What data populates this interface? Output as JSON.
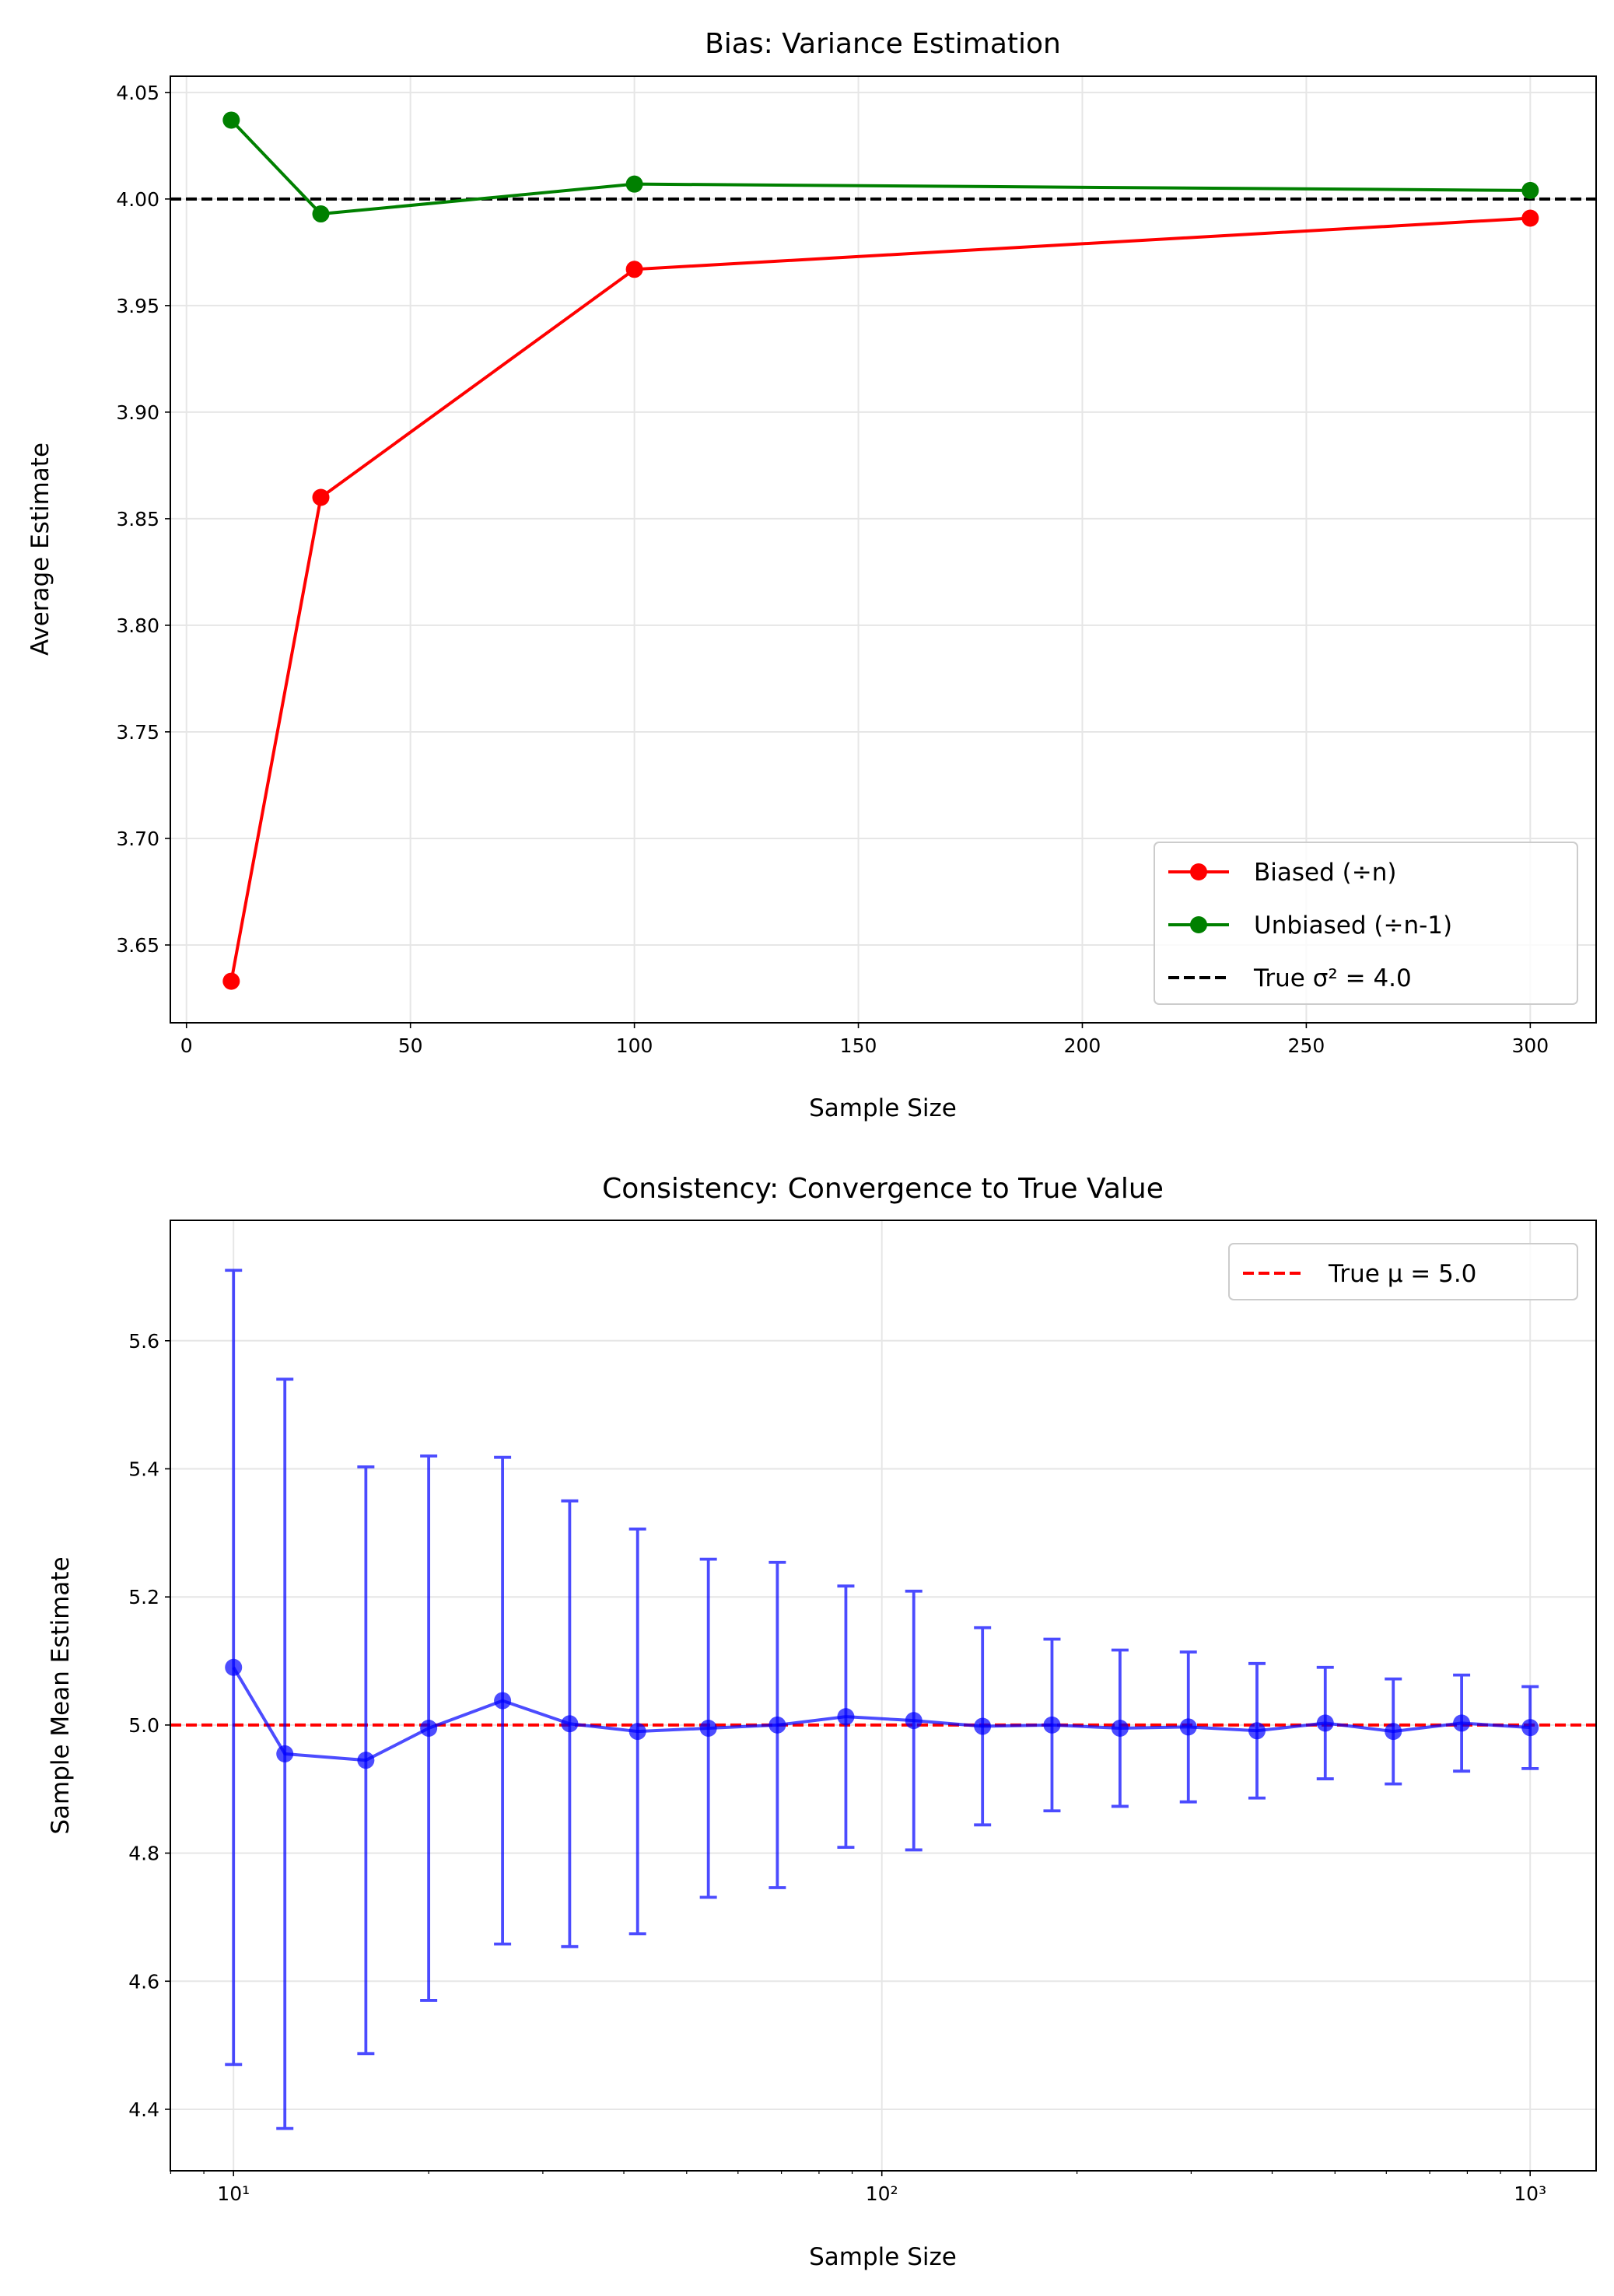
{
  "chart_data": [
    {
      "type": "line",
      "title": "Bias: Variance Estimation",
      "xlabel": "Sample Size",
      "ylabel": "Average Estimate",
      "x": [
        10,
        30,
        100,
        300
      ],
      "xlim": [
        -3.6,
        314.7
      ],
      "ylim": [
        3.6135,
        4.0576
      ],
      "xticks": [
        0,
        50,
        100,
        150,
        200,
        250,
        300
      ],
      "xtick_labels": [
        "0",
        "50",
        "100",
        "150",
        "200",
        "250",
        "300"
      ],
      "yticks": [
        3.65,
        3.7,
        3.75,
        3.8,
        3.85,
        3.9,
        3.95,
        4.0,
        4.05
      ],
      "ytick_labels": [
        "3.65",
        "3.70",
        "3.75",
        "3.80",
        "3.85",
        "3.90",
        "3.95",
        "4.00",
        "4.05"
      ],
      "grid": true,
      "legend_position": "lower-right",
      "series": [
        {
          "name": "Biased (÷n)",
          "color": "#ff0000",
          "values": [
            3.633,
            3.86,
            3.967,
            3.991
          ]
        },
        {
          "name": "Unbiased (÷n-1)",
          "color": "#008000",
          "values": [
            4.037,
            3.993,
            4.007,
            4.004
          ]
        }
      ],
      "reference_line": {
        "name": "True σ² = 4.0",
        "value": 4.0,
        "color": "#000000",
        "style": "dashed"
      }
    },
    {
      "type": "scatter",
      "title": "Consistency: Convergence to True Value",
      "xlabel": "Sample Size",
      "ylabel": "Sample Mean Estimate",
      "xscale": "log",
      "xlim": [
        7.99,
        1264
      ],
      "ylim": [
        4.304,
        5.788
      ],
      "xticks": [
        10,
        100,
        1000
      ],
      "xtick_labels": [
        "10¹",
        "10²",
        "10³"
      ],
      "yticks": [
        4.4,
        4.6,
        4.8,
        5.0,
        5.2,
        5.4,
        5.6
      ],
      "ytick_labels": [
        "4.4",
        "4.6",
        "4.8",
        "5.0",
        "5.2",
        "5.4",
        "5.6"
      ],
      "grid": true,
      "legend_position": "upper-right",
      "series": [
        {
          "color": "#0000ff",
          "x": [
            10,
            12,
            16,
            20,
            26,
            33,
            42,
            54,
            69,
            88,
            112,
            143,
            183,
            233,
            297,
            379,
            483,
            615,
            784,
            1000
          ],
          "values": [
            5.09,
            4.955,
            4.945,
            4.995,
            5.038,
            5.002,
            4.99,
            4.995,
            5.0,
            5.013,
            5.007,
            4.998,
            5.0,
            4.995,
            4.997,
            4.991,
            5.003,
            4.99,
            5.003,
            4.996
          ],
          "error": [
            0.62,
            0.585,
            0.458,
            0.425,
            0.38,
            0.348,
            0.316,
            0.264,
            0.254,
            0.204,
            0.202,
            0.154,
            0.134,
            0.122,
            0.117,
            0.105,
            0.087,
            0.082,
            0.075,
            0.064
          ]
        }
      ],
      "reference_line": {
        "name": "True μ = 5.0",
        "value": 5.0,
        "color": "#ff0000",
        "style": "dashed"
      }
    }
  ]
}
